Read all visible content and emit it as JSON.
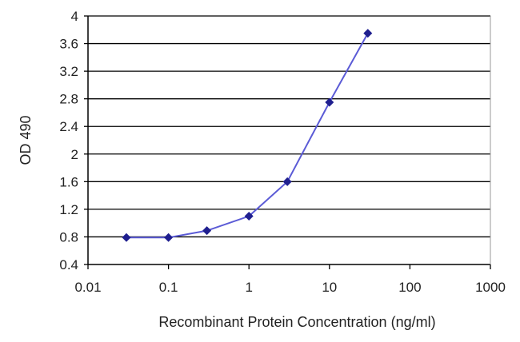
{
  "chart_data": {
    "type": "line",
    "title": "",
    "xlabel": "Recombinant Protein Concentration (ng/ml)",
    "ylabel": "OD 490",
    "xscale": "log",
    "xlim": [
      0.01,
      1000
    ],
    "ylim": [
      0.4,
      4
    ],
    "x_ticks": [
      0.01,
      0.1,
      1,
      10,
      100,
      1000
    ],
    "x_tick_labels": [
      "0.01",
      "0.1",
      "1",
      "10",
      "100",
      "1000"
    ],
    "y_ticks": [
      0.4,
      0.8,
      1.2,
      1.6,
      2,
      2.4,
      2.8,
      3.2,
      3.6,
      4
    ],
    "y_tick_labels": [
      "0.4",
      "0.8",
      "1.2",
      "1.6",
      "2",
      "2.4",
      "2.8",
      "3.2",
      "3.6",
      "4"
    ],
    "grid": "horizontal",
    "legend": "none",
    "series": [
      {
        "x": [
          0.03,
          0.1,
          0.3,
          1,
          3,
          10,
          30
        ],
        "y": [
          0.79,
          0.79,
          0.89,
          1.1,
          1.6,
          2.75,
          3.75
        ]
      }
    ],
    "colors": {
      "line": "#5b5bd6",
      "marker": "#1f1f8f",
      "grid": "#000000",
      "axis": "#000000"
    }
  }
}
